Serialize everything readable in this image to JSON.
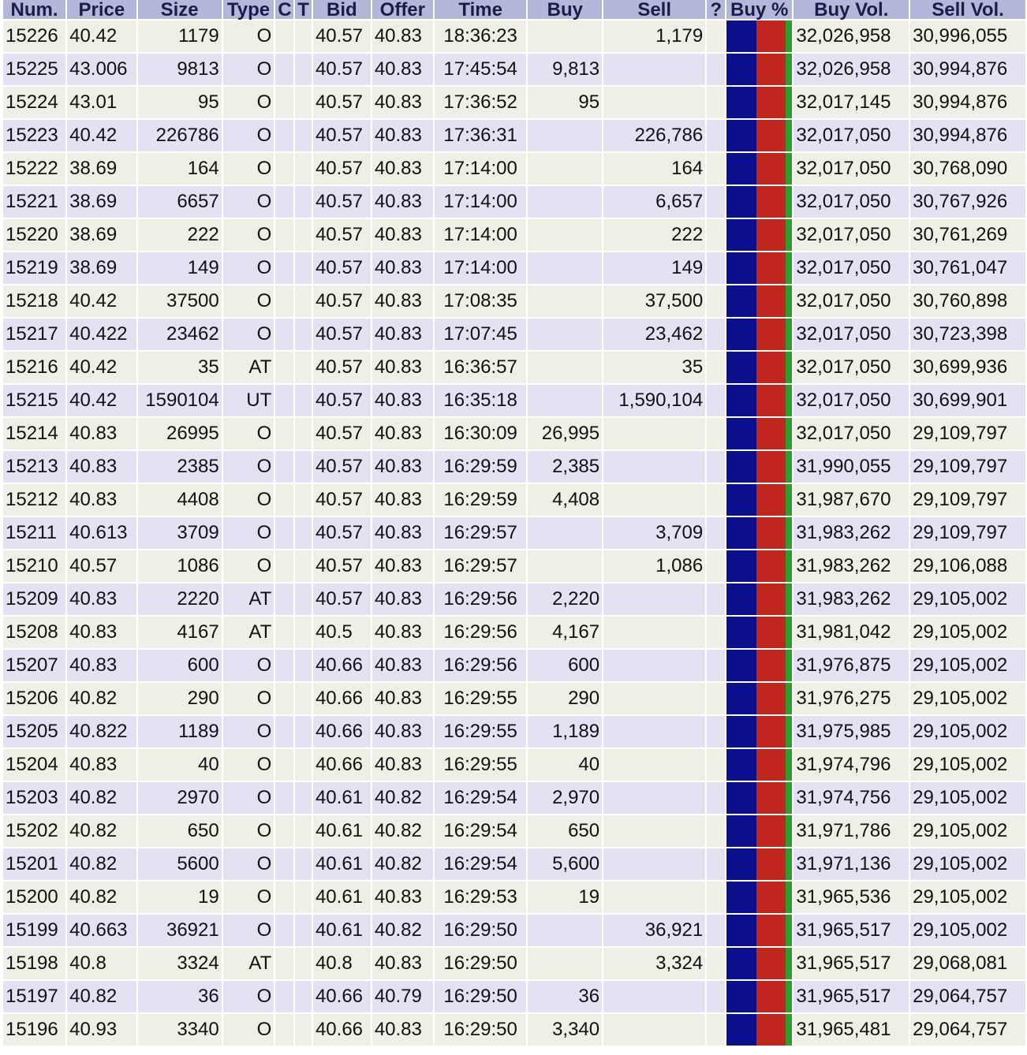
{
  "columns": {
    "num": "Num.",
    "price": "Price",
    "size": "Size",
    "type": "Type",
    "c": "C",
    "t": "T",
    "bid": "Bid",
    "offer": "Offer",
    "time": "Time",
    "buy": "Buy",
    "sell": "Sell",
    "q": "?",
    "buy_pct": "Buy %",
    "buy_vol": "Buy Vol.",
    "sell_vol": "Sell Vol."
  },
  "colors": {
    "header_bg": "#b4b7d9",
    "row_odd": "#efefe6",
    "row_even": "#e2e2f3",
    "bar_buy": "#0b0f8c",
    "bar_sell": "#c1271f",
    "bar_other": "#2f9e2f"
  },
  "buy_pct_bar": {
    "buy": 0.45,
    "sell": 0.45,
    "other": 0.1
  },
  "rows": [
    {
      "num": "15226",
      "price": "40.42",
      "size": "1179",
      "type": "O",
      "bid": "40.57",
      "offer": "40.83",
      "time": "18:36:23",
      "buy": "",
      "sell": "1,179",
      "buy_vol": "32,026,958",
      "sell_vol": "30,996,055"
    },
    {
      "num": "15225",
      "price": "43.006",
      "size": "9813",
      "type": "O",
      "bid": "40.57",
      "offer": "40.83",
      "time": "17:45:54",
      "buy": "9,813",
      "sell": "",
      "buy_vol": "32,026,958",
      "sell_vol": "30,994,876"
    },
    {
      "num": "15224",
      "price": "43.01",
      "size": "95",
      "type": "O",
      "bid": "40.57",
      "offer": "40.83",
      "time": "17:36:52",
      "buy": "95",
      "sell": "",
      "buy_vol": "32,017,145",
      "sell_vol": "30,994,876"
    },
    {
      "num": "15223",
      "price": "40.42",
      "size": "226786",
      "type": "O",
      "bid": "40.57",
      "offer": "40.83",
      "time": "17:36:31",
      "buy": "",
      "sell": "226,786",
      "buy_vol": "32,017,050",
      "sell_vol": "30,994,876"
    },
    {
      "num": "15222",
      "price": "38.69",
      "size": "164",
      "type": "O",
      "bid": "40.57",
      "offer": "40.83",
      "time": "17:14:00",
      "buy": "",
      "sell": "164",
      "buy_vol": "32,017,050",
      "sell_vol": "30,768,090"
    },
    {
      "num": "15221",
      "price": "38.69",
      "size": "6657",
      "type": "O",
      "bid": "40.57",
      "offer": "40.83",
      "time": "17:14:00",
      "buy": "",
      "sell": "6,657",
      "buy_vol": "32,017,050",
      "sell_vol": "30,767,926"
    },
    {
      "num": "15220",
      "price": "38.69",
      "size": "222",
      "type": "O",
      "bid": "40.57",
      "offer": "40.83",
      "time": "17:14:00",
      "buy": "",
      "sell": "222",
      "buy_vol": "32,017,050",
      "sell_vol": "30,761,269"
    },
    {
      "num": "15219",
      "price": "38.69",
      "size": "149",
      "type": "O",
      "bid": "40.57",
      "offer": "40.83",
      "time": "17:14:00",
      "buy": "",
      "sell": "149",
      "buy_vol": "32,017,050",
      "sell_vol": "30,761,047"
    },
    {
      "num": "15218",
      "price": "40.42",
      "size": "37500",
      "type": "O",
      "bid": "40.57",
      "offer": "40.83",
      "time": "17:08:35",
      "buy": "",
      "sell": "37,500",
      "buy_vol": "32,017,050",
      "sell_vol": "30,760,898"
    },
    {
      "num": "15217",
      "price": "40.422",
      "size": "23462",
      "type": "O",
      "bid": "40.57",
      "offer": "40.83",
      "time": "17:07:45",
      "buy": "",
      "sell": "23,462",
      "buy_vol": "32,017,050",
      "sell_vol": "30,723,398"
    },
    {
      "num": "15216",
      "price": "40.42",
      "size": "35",
      "type": "AT",
      "bid": "40.57",
      "offer": "40.83",
      "time": "16:36:57",
      "buy": "",
      "sell": "35",
      "buy_vol": "32,017,050",
      "sell_vol": "30,699,936"
    },
    {
      "num": "15215",
      "price": "40.42",
      "size": "1590104",
      "type": "UT",
      "bid": "40.57",
      "offer": "40.83",
      "time": "16:35:18",
      "buy": "",
      "sell": "1,590,104",
      "buy_vol": "32,017,050",
      "sell_vol": "30,699,901"
    },
    {
      "num": "15214",
      "price": "40.83",
      "size": "26995",
      "type": "O",
      "bid": "40.57",
      "offer": "40.83",
      "time": "16:30:09",
      "buy": "26,995",
      "sell": "",
      "buy_vol": "32,017,050",
      "sell_vol": "29,109,797"
    },
    {
      "num": "15213",
      "price": "40.83",
      "size": "2385",
      "type": "O",
      "bid": "40.57",
      "offer": "40.83",
      "time": "16:29:59",
      "buy": "2,385",
      "sell": "",
      "buy_vol": "31,990,055",
      "sell_vol": "29,109,797"
    },
    {
      "num": "15212",
      "price": "40.83",
      "size": "4408",
      "type": "O",
      "bid": "40.57",
      "offer": "40.83",
      "time": "16:29:59",
      "buy": "4,408",
      "sell": "",
      "buy_vol": "31,987,670",
      "sell_vol": "29,109,797"
    },
    {
      "num": "15211",
      "price": "40.613",
      "size": "3709",
      "type": "O",
      "bid": "40.57",
      "offer": "40.83",
      "time": "16:29:57",
      "buy": "",
      "sell": "3,709",
      "buy_vol": "31,983,262",
      "sell_vol": "29,109,797"
    },
    {
      "num": "15210",
      "price": "40.57",
      "size": "1086",
      "type": "O",
      "bid": "40.57",
      "offer": "40.83",
      "time": "16:29:57",
      "buy": "",
      "sell": "1,086",
      "buy_vol": "31,983,262",
      "sell_vol": "29,106,088"
    },
    {
      "num": "15209",
      "price": "40.83",
      "size": "2220",
      "type": "AT",
      "bid": "40.57",
      "offer": "40.83",
      "time": "16:29:56",
      "buy": "2,220",
      "sell": "",
      "buy_vol": "31,983,262",
      "sell_vol": "29,105,002"
    },
    {
      "num": "15208",
      "price": "40.83",
      "size": "4167",
      "type": "AT",
      "bid": "40.5",
      "offer": "40.83",
      "time": "16:29:56",
      "buy": "4,167",
      "sell": "",
      "buy_vol": "31,981,042",
      "sell_vol": "29,105,002"
    },
    {
      "num": "15207",
      "price": "40.83",
      "size": "600",
      "type": "O",
      "bid": "40.66",
      "offer": "40.83",
      "time": "16:29:56",
      "buy": "600",
      "sell": "",
      "buy_vol": "31,976,875",
      "sell_vol": "29,105,002"
    },
    {
      "num": "15206",
      "price": "40.82",
      "size": "290",
      "type": "O",
      "bid": "40.66",
      "offer": "40.83",
      "time": "16:29:55",
      "buy": "290",
      "sell": "",
      "buy_vol": "31,976,275",
      "sell_vol": "29,105,002"
    },
    {
      "num": "15205",
      "price": "40.822",
      "size": "1189",
      "type": "O",
      "bid": "40.66",
      "offer": "40.83",
      "time": "16:29:55",
      "buy": "1,189",
      "sell": "",
      "buy_vol": "31,975,985",
      "sell_vol": "29,105,002"
    },
    {
      "num": "15204",
      "price": "40.83",
      "size": "40",
      "type": "O",
      "bid": "40.66",
      "offer": "40.83",
      "time": "16:29:55",
      "buy": "40",
      "sell": "",
      "buy_vol": "31,974,796",
      "sell_vol": "29,105,002"
    },
    {
      "num": "15203",
      "price": "40.82",
      "size": "2970",
      "type": "O",
      "bid": "40.61",
      "offer": "40.82",
      "time": "16:29:54",
      "buy": "2,970",
      "sell": "",
      "buy_vol": "31,974,756",
      "sell_vol": "29,105,002"
    },
    {
      "num": "15202",
      "price": "40.82",
      "size": "650",
      "type": "O",
      "bid": "40.61",
      "offer": "40.82",
      "time": "16:29:54",
      "buy": "650",
      "sell": "",
      "buy_vol": "31,971,786",
      "sell_vol": "29,105,002"
    },
    {
      "num": "15201",
      "price": "40.82",
      "size": "5600",
      "type": "O",
      "bid": "40.61",
      "offer": "40.82",
      "time": "16:29:54",
      "buy": "5,600",
      "sell": "",
      "buy_vol": "31,971,136",
      "sell_vol": "29,105,002"
    },
    {
      "num": "15200",
      "price": "40.82",
      "size": "19",
      "type": "O",
      "bid": "40.61",
      "offer": "40.83",
      "time": "16:29:53",
      "buy": "19",
      "sell": "",
      "buy_vol": "31,965,536",
      "sell_vol": "29,105,002"
    },
    {
      "num": "15199",
      "price": "40.663",
      "size": "36921",
      "type": "O",
      "bid": "40.61",
      "offer": "40.82",
      "time": "16:29:50",
      "buy": "",
      "sell": "36,921",
      "buy_vol": "31,965,517",
      "sell_vol": "29,105,002"
    },
    {
      "num": "15198",
      "price": "40.8",
      "size": "3324",
      "type": "AT",
      "bid": "40.8",
      "offer": "40.83",
      "time": "16:29:50",
      "buy": "",
      "sell": "3,324",
      "buy_vol": "31,965,517",
      "sell_vol": "29,068,081"
    },
    {
      "num": "15197",
      "price": "40.82",
      "size": "36",
      "type": "O",
      "bid": "40.66",
      "offer": "40.79",
      "time": "16:29:50",
      "buy": "36",
      "sell": "",
      "buy_vol": "31,965,517",
      "sell_vol": "29,064,757"
    },
    {
      "num": "15196",
      "price": "40.93",
      "size": "3340",
      "type": "O",
      "bid": "40.66",
      "offer": "40.83",
      "time": "16:29:50",
      "buy": "3,340",
      "sell": "",
      "buy_vol": "31,965,481",
      "sell_vol": "29,064,757"
    }
  ]
}
